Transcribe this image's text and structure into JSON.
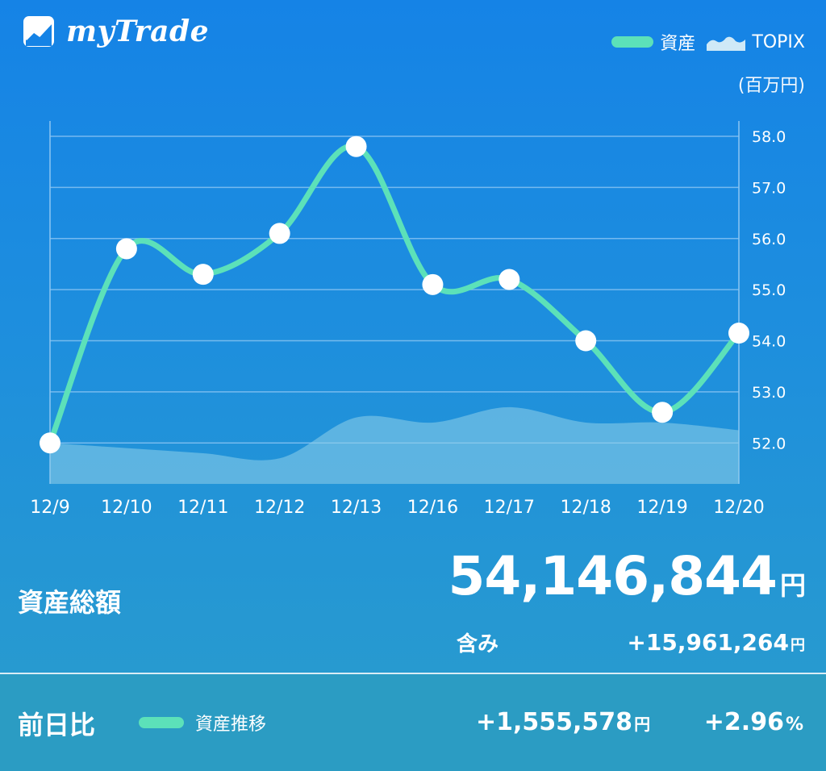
{
  "app": {
    "logo_text": "myTrade",
    "legend": {
      "asset": "資産",
      "topix": "TOPIX"
    },
    "unit": "(百万円)"
  },
  "colors": {
    "asset_line": "#5ce1b9",
    "topix_area": "#8fcfe9",
    "grid": "#8cc6f2",
    "background_top": "#1583e6",
    "background_bottom": "#2a9dcc"
  },
  "chart_data": {
    "type": "line",
    "categories": [
      "12/9",
      "12/10",
      "12/11",
      "12/12",
      "12/13",
      "12/16",
      "12/17",
      "12/18",
      "12/19",
      "12/20"
    ],
    "series": [
      {
        "name": "資産",
        "values": [
          52.0,
          55.8,
          55.3,
          56.1,
          57.8,
          55.1,
          55.2,
          54.0,
          52.6,
          54.15
        ]
      },
      {
        "name": "TOPIX",
        "values": [
          52.0,
          51.9,
          51.8,
          51.7,
          52.5,
          52.4,
          52.7,
          52.4,
          52.4,
          52.25
        ]
      }
    ],
    "y_ticks": [
      "52.0",
      "53.0",
      "54.0",
      "55.0",
      "56.0",
      "57.0",
      "58.0"
    ],
    "ylim": [
      51.2,
      58.3
    ],
    "y_axis_position": "right",
    "grid": true,
    "legend_position": "top-right"
  },
  "summary": {
    "label": "資産総額",
    "total": "54,146,844",
    "total_unit": "円",
    "included_label": "含み",
    "included_value": "+15,961,264",
    "included_unit": "円"
  },
  "footer": {
    "label": "前日比",
    "legend_label": "資産推移",
    "diff": "+1,555,578",
    "diff_unit": "円",
    "percent": "+2.96",
    "percent_unit": "%"
  }
}
